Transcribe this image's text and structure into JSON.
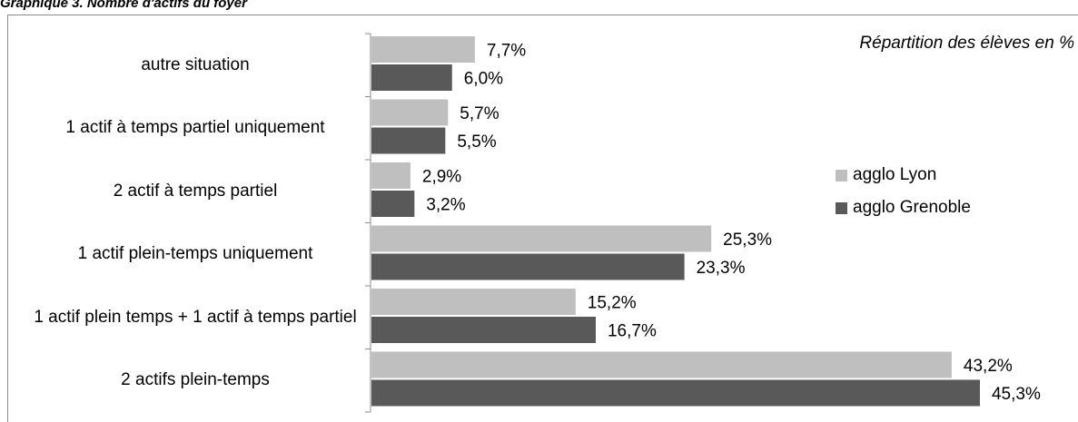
{
  "title": "Graphique 3. Nombre d'actifs du foyer",
  "annotation": "Répartition des élèves en %",
  "colors": {
    "lyon": "#bfbfbf",
    "grenoble": "#595959"
  },
  "chart_data": {
    "type": "bar",
    "orientation": "horizontal",
    "categories": [
      "autre situation",
      "1 actif à temps partiel uniquement",
      "2 actif à temps partiel",
      "1 actif plein-temps uniquement",
      "1 actif plein temps + 1 actif à temps partiel",
      "2 actifs plein-temps"
    ],
    "series": [
      {
        "name": "agglo Lyon",
        "values": [
          7.7,
          5.7,
          2.9,
          25.3,
          15.2,
          43.2
        ],
        "labels": [
          "7,7%",
          "5,7%",
          "2,9%",
          "25,3%",
          "15,2%",
          "43,2%"
        ]
      },
      {
        "name": "agglo Grenoble",
        "values": [
          6.0,
          5.5,
          3.2,
          23.3,
          16.7,
          45.3
        ],
        "labels": [
          "6,0%",
          "5,5%",
          "3,2%",
          "23,3%",
          "16,7%",
          "45,3%"
        ]
      }
    ],
    "legend_position": "right",
    "grid": false
  }
}
